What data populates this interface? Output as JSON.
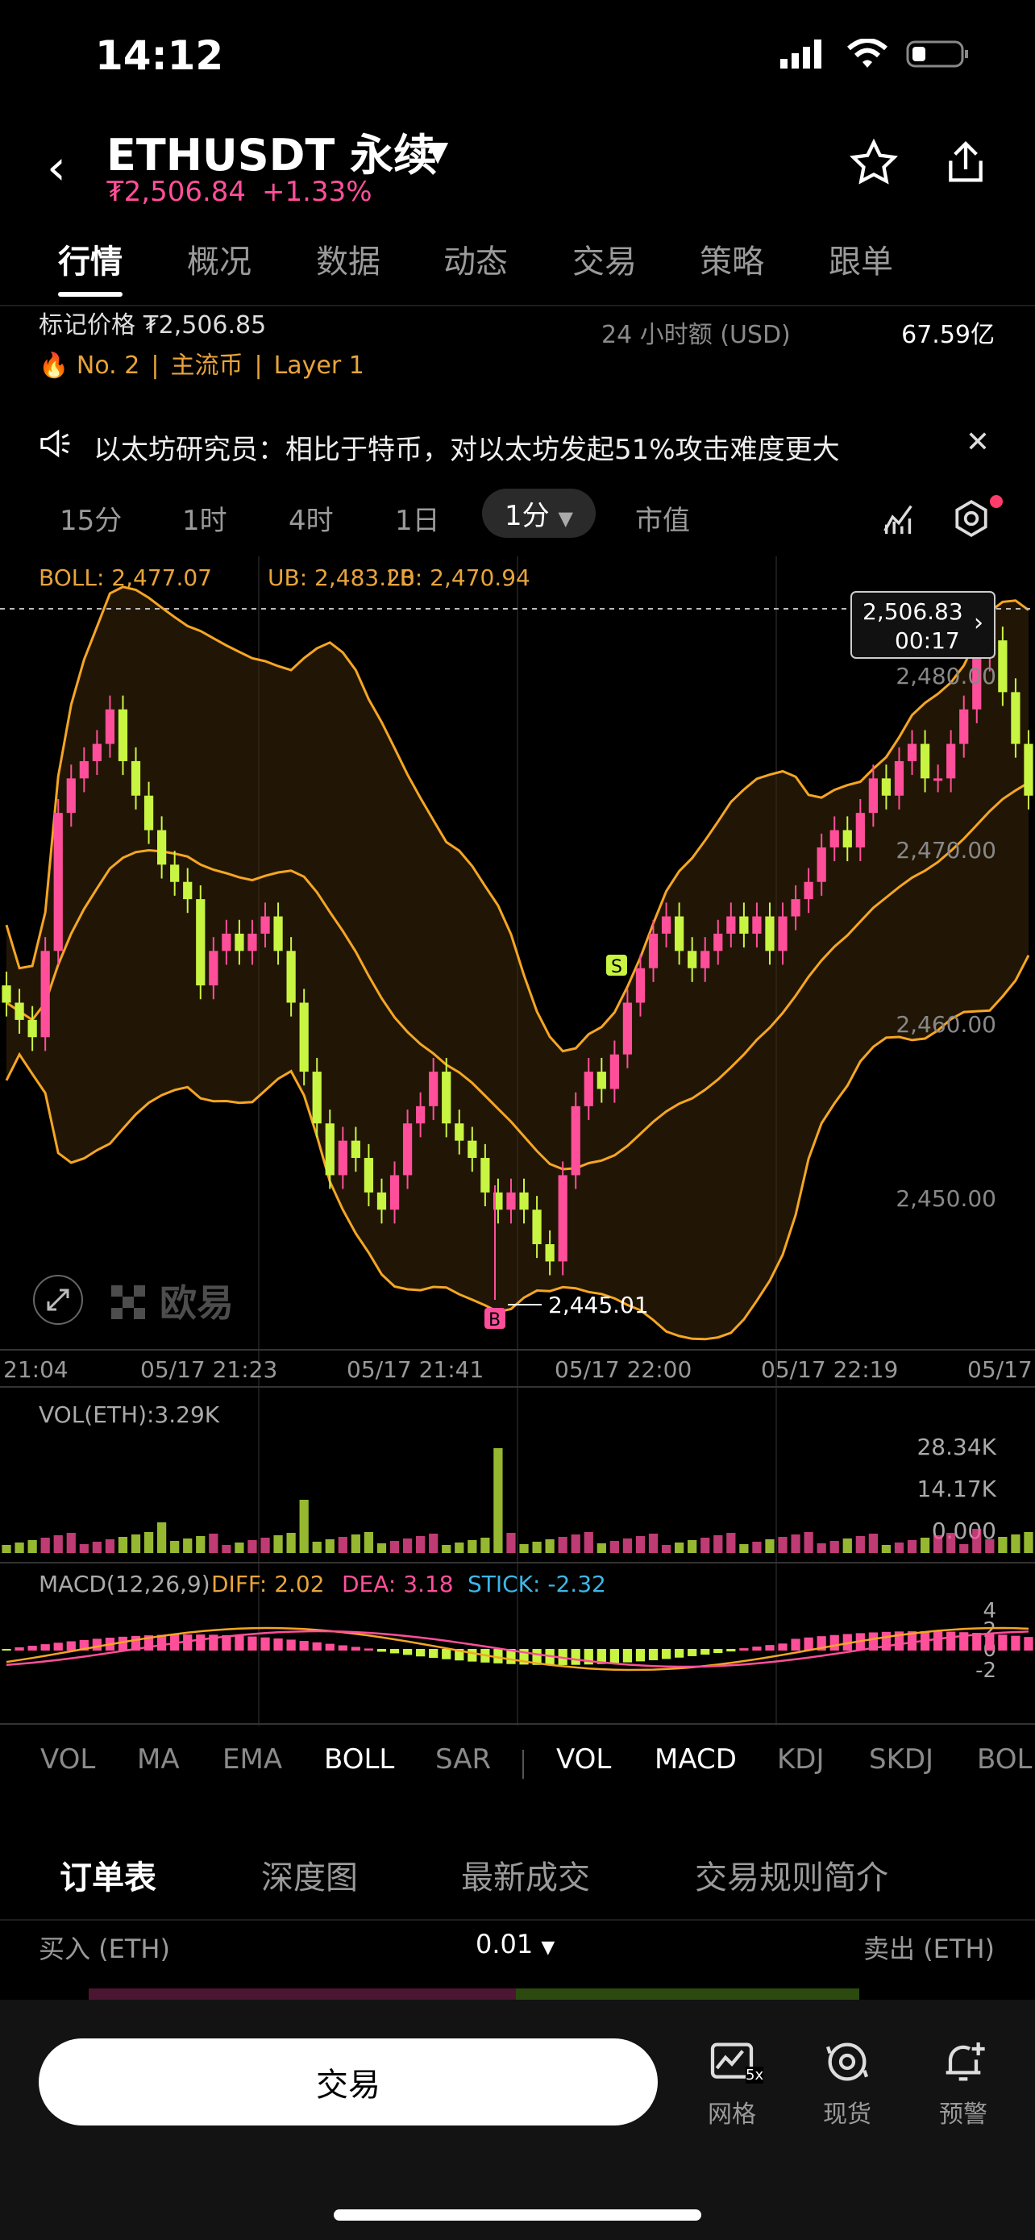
{
  "status": {
    "time": "14:12"
  },
  "header": {
    "symbol": "ETHUSDT 永续",
    "price": "₮2,506.84",
    "change": "+1.33%"
  },
  "tabs": [
    "行情",
    "概况",
    "数据",
    "动态",
    "交易",
    "策略",
    "跟单"
  ],
  "info": {
    "mark_price": "标记价格 ₮2,506.85",
    "vol_label": "24 小时额 (USD)",
    "vol_value": "67.59亿",
    "tag1": "No. 2",
    "tag2": "主流币",
    "tag3": "Layer 1"
  },
  "news": "以太坊研究员：相比于特币，对以太坊发起51%攻击难度更大",
  "timeframes": [
    "15分",
    "1时",
    "4时",
    "1日",
    "1分",
    "市值"
  ],
  "boll": {
    "label": "BOLL: 2,477.07",
    "ub": "UB: 2,483.20",
    "lb": "LB: 2,470.94"
  },
  "price_tag": {
    "price": "2,506.83",
    "countdown": "00:17"
  },
  "y_ticks": [
    "2,480.00",
    "2,470.00",
    "2,460.00",
    "2,450.00"
  ],
  "low_label": "2,445.01",
  "x_ticks": [
    "21:04",
    "05/17 21:23",
    "05/17 21:41",
    "05/17 22:00",
    "05/17 22:19",
    "05/17"
  ],
  "vol": {
    "label": "VOL(ETH):3.29K",
    "ticks": [
      "28.34K",
      "14.17K",
      "0.000"
    ]
  },
  "macd": {
    "label": "MACD(12,26,9)",
    "diff": "DIFF: 2.02",
    "dea": "DEA: 3.18",
    "stick": "STICK: -2.32",
    "ticks": [
      "4",
      "2",
      "0",
      "-2"
    ]
  },
  "watermark": "欧易",
  "indicators": [
    "VOL",
    "MA",
    "EMA",
    "BOLL",
    "SAR",
    "VOL",
    "MACD",
    "KDJ",
    "SKDJ",
    "BOL"
  ],
  "orderbook_tabs": [
    "订单表",
    "深度图",
    "最新成交",
    "交易规则简介"
  ],
  "orderbook": {
    "buy": "买入 (ETH)",
    "step": "0.01",
    "sell": "卖出 (ETH)"
  },
  "bottom": {
    "trade": "交易",
    "grid": "网格",
    "spot": "现货",
    "alert": "预警",
    "grid_badge": "5x"
  },
  "colors": {
    "up": "#ff4f9a",
    "down": "#c8f542",
    "boll": "#f5a623",
    "accent": "#e8a43a"
  },
  "chart_data": {
    "type": "candlestick",
    "close": [
      2463,
      2462,
      2461,
      2466,
      2474,
      2476,
      2477,
      2478,
      2480,
      2477,
      2475,
      2473,
      2471,
      2470,
      2469,
      2464,
      2466,
      2467,
      2466,
      2467,
      2468,
      2466,
      2463,
      2459,
      2456,
      2453,
      2455,
      2454,
      2452,
      2451,
      2453,
      2456,
      2457,
      2459,
      2456,
      2455,
      2454,
      2452,
      2451,
      2452,
      2451,
      2449,
      2448,
      2453,
      2457,
      2459,
      2458,
      2460,
      2463,
      2465,
      2467,
      2468,
      2466,
      2465,
      2466,
      2467,
      2468,
      2467,
      2468,
      2466,
      2468,
      2469,
      2470,
      2472,
      2473,
      2472,
      2474,
      2476,
      2475,
      2477,
      2478,
      2476,
      2476,
      2478,
      2480,
      2483,
      2484,
      2481,
      2478,
      2475
    ],
    "y_range": [
      2444,
      2487
    ]
  }
}
